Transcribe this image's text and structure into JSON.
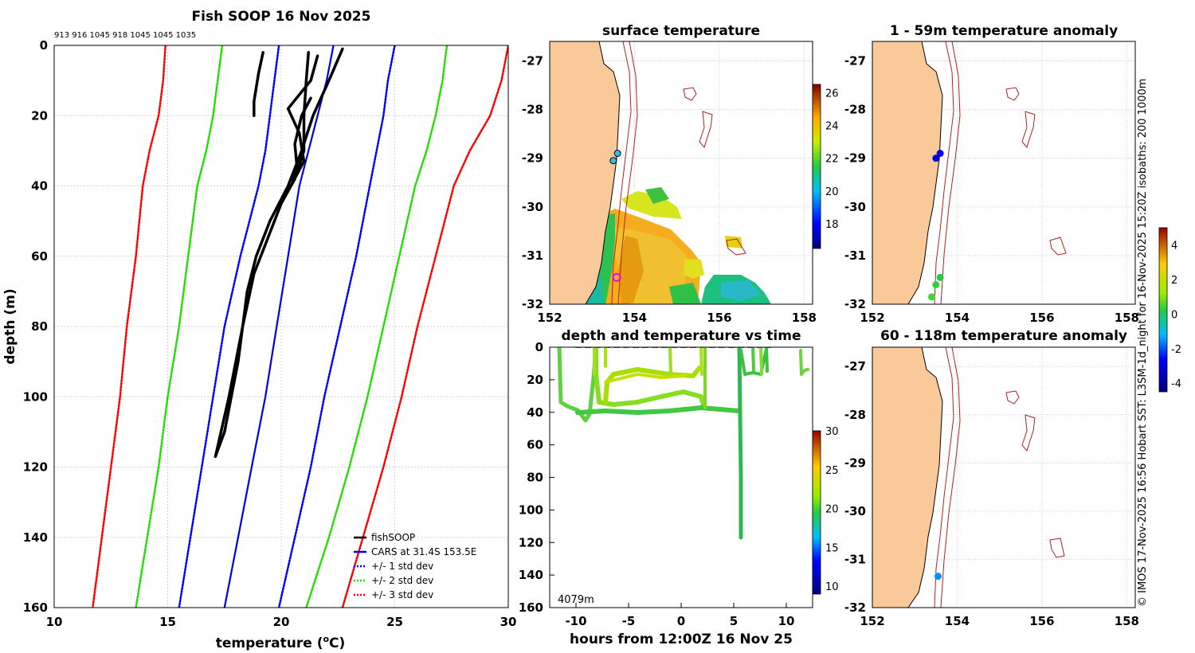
{
  "chart_data": [
    {
      "type": "line",
      "title": "Fish SOOP 16 Nov 2025",
      "xlabel": "temperature (oC)",
      "ylabel": "depth (m)",
      "xlim": [
        10,
        30
      ],
      "ylim": [
        160,
        0
      ],
      "xticks": [
        "10",
        "15",
        "20",
        "25",
        "30"
      ],
      "yticks": [
        "0",
        "20",
        "40",
        "60",
        "80",
        "100",
        "120",
        "140",
        "160"
      ],
      "top_ids": "913 916 1045 918 1045 1045 1035",
      "legend": [
        "fishSOOP",
        "CARS at 31.4S 153.5E",
        "+/- 1 std dev",
        "+/- 2 std dev",
        "+/- 3 std dev"
      ],
      "colors": {
        "fish": "#000000",
        "cars": "#0000dd",
        "sd1": "#0000ff",
        "sd2": "#22dd00",
        "sd3": "#ff0000"
      },
      "series": [
        {
          "name": "CARS at 31.4S 153.5E",
          "style": "solid",
          "depth": [
            0,
            10,
            20,
            30,
            40,
            60,
            80,
            100,
            120,
            140,
            160
          ],
          "temp": [
            22.3,
            22.0,
            21.6,
            21.2,
            20.8,
            20.3,
            19.8,
            19.3,
            18.7,
            18.1,
            17.5
          ]
        },
        {
          "name": "-1 std dev",
          "style": "dotted",
          "depth": [
            0,
            10,
            20,
            30,
            40,
            60,
            80,
            100,
            120,
            140,
            160
          ],
          "temp": [
            19.9,
            19.7,
            19.5,
            19.3,
            19.0,
            18.2,
            17.5,
            17.0,
            16.5,
            16.0,
            15.5
          ]
        },
        {
          "name": "+1 std dev",
          "style": "dotted",
          "depth": [
            0,
            10,
            20,
            30,
            40,
            60,
            80,
            100,
            120,
            140,
            160
          ],
          "temp": [
            25.0,
            24.7,
            24.5,
            24.2,
            23.9,
            23.3,
            22.6,
            21.9,
            21.3,
            20.6,
            19.9
          ]
        },
        {
          "name": "-2 std dev",
          "style": "dotted",
          "depth": [
            0,
            10,
            20,
            30,
            40,
            60,
            80,
            100,
            120,
            140,
            160
          ],
          "temp": [
            17.4,
            17.2,
            17.0,
            16.7,
            16.3,
            15.9,
            15.5,
            15.0,
            14.6,
            14.1,
            13.6
          ]
        },
        {
          "name": "+2 std dev",
          "style": "dotted",
          "depth": [
            0,
            10,
            20,
            30,
            40,
            60,
            80,
            100,
            120,
            140,
            160
          ],
          "temp": [
            27.3,
            27.1,
            26.8,
            26.4,
            25.9,
            25.2,
            24.5,
            23.8,
            23.0,
            22.1,
            21.1
          ]
        },
        {
          "name": "-3 std dev",
          "style": "dotted",
          "depth": [
            0,
            10,
            20,
            30,
            40,
            60,
            80,
            100,
            120,
            140,
            160
          ],
          "temp": [
            14.9,
            14.8,
            14.6,
            14.2,
            13.9,
            13.6,
            13.2,
            12.9,
            12.5,
            12.1,
            11.7
          ]
        },
        {
          "name": "+3 std dev",
          "style": "dotted",
          "depth": [
            0,
            10,
            20,
            30,
            40,
            60,
            80,
            100,
            120,
            140,
            160
          ],
          "temp": [
            30.0,
            29.7,
            29.2,
            28.3,
            27.6,
            26.8,
            26.0,
            25.3,
            24.5,
            23.6,
            22.7
          ]
        },
        {
          "name": "fishSOOP A",
          "style": "solid",
          "depth": [
            1,
            10,
            20,
            30,
            40,
            50,
            60,
            70,
            80,
            90,
            100,
            110,
            117
          ],
          "temp": [
            22.7,
            22.1,
            21.4,
            20.9,
            20.3,
            19.5,
            18.9,
            18.5,
            18.3,
            18.1,
            17.8,
            17.5,
            17.1
          ]
        },
        {
          "name": "fishSOOP B",
          "style": "solid",
          "depth": [
            2,
            10,
            20,
            30,
            38,
            45,
            55,
            65,
            80,
            100,
            117
          ],
          "temp": [
            21.2,
            21.1,
            21.0,
            21.0,
            20.6,
            20.0,
            19.4,
            18.8,
            18.3,
            17.7,
            17.1
          ]
        },
        {
          "name": "fishSOOP C",
          "style": "solid",
          "depth": [
            2,
            8,
            16,
            20
          ],
          "temp": [
            19.2,
            19.0,
            18.8,
            18.8
          ]
        },
        {
          "name": "fishSOOP D",
          "style": "solid",
          "depth": [
            3,
            10,
            18,
            25,
            33,
            39,
            35,
            28,
            20,
            15
          ],
          "temp": [
            21.6,
            21.3,
            20.3,
            20.8,
            21.0,
            20.5,
            20.7,
            20.6,
            20.9,
            21.3
          ]
        }
      ]
    },
    {
      "type": "heatmap",
      "title": "surface temperature",
      "xticks": [
        "152",
        "154",
        "156",
        "158"
      ],
      "yticks": [
        "-27",
        "-28",
        "-29",
        "-30",
        "-31",
        "-32"
      ],
      "xlim": [
        152,
        158.2
      ],
      "ylim": [
        -32,
        -26.6
      ],
      "colorbar": {
        "ticks": [
          "18",
          "20",
          "22",
          "24",
          "26"
        ],
        "range": [
          16.5,
          26.5
        ]
      },
      "points": [
        {
          "lon": 153.6,
          "lat": -28.9
        },
        {
          "lon": 153.5,
          "lat": -29.05
        }
      ],
      "marker": {
        "lon": 153.58,
        "lat": -31.45
      }
    },
    {
      "type": "scatter",
      "title": "1 - 59m temperature anomaly",
      "xticks": [
        "152",
        "154",
        "156",
        "158"
      ],
      "yticks": [
        "-27",
        "-28",
        "-29",
        "-30",
        "-31",
        "-32"
      ],
      "points": [
        {
          "lon": 153.6,
          "lat": -28.9,
          "anom": -2.8
        },
        {
          "lon": 153.5,
          "lat": -29.0,
          "anom": -3.2
        },
        {
          "lon": 153.6,
          "lat": -31.45,
          "anom": 0.2
        },
        {
          "lon": 153.5,
          "lat": -31.6,
          "anom": 0.4
        },
        {
          "lon": 153.4,
          "lat": -31.85,
          "anom": 0.5
        }
      ]
    },
    {
      "type": "scatter",
      "title": "60 - 118m temperature anomaly",
      "xticks": [
        "152",
        "154",
        "156",
        "158"
      ],
      "yticks": [
        "-27",
        "-28",
        "-29",
        "-30",
        "-31",
        "-32"
      ],
      "points": [
        {
          "lon": 153.55,
          "lat": -31.35,
          "anom": -1.5
        }
      ],
      "colorbar": {
        "ticks": [
          "4",
          "2",
          "0",
          "-2",
          "-4"
        ],
        "range": [
          -4.5,
          5
        ]
      }
    },
    {
      "type": "scatter",
      "title": "depth and temperature vs time",
      "xlabel": "hours from 12:00Z 16 Nov 25",
      "xticks": [
        "-10",
        "-5",
        "0",
        "5",
        "10"
      ],
      "yticks": [
        "0",
        "20",
        "40",
        "60",
        "80",
        "100",
        "120",
        "140",
        "160"
      ],
      "xlim": [
        -12.5,
        12.5
      ],
      "ylim": [
        160,
        0
      ],
      "annotation": "4079m",
      "colorbar": {
        "ticks": [
          "10",
          "15",
          "20",
          "25",
          "30"
        ],
        "range": [
          9,
          30
        ]
      }
    }
  ],
  "side_text": "© IMOS 17-Nov-2025 16:56 Hobart SST: L3SM-1d_night for 16-Nov-2025 15:20Z isobaths: 200  1000m"
}
